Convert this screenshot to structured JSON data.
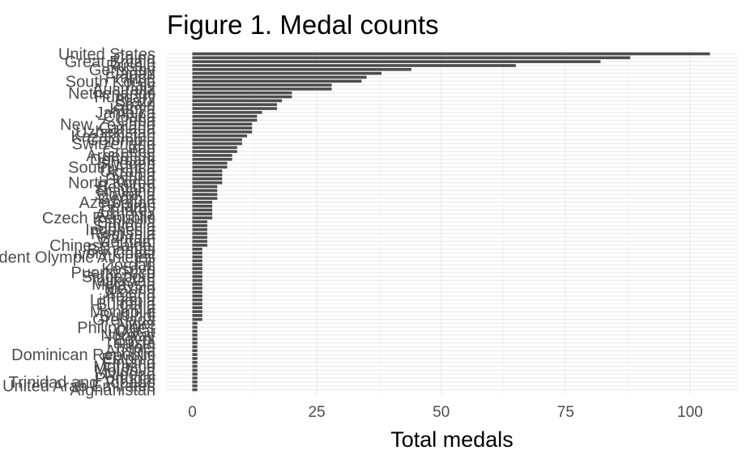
{
  "chart_data": {
    "type": "bar",
    "orientation": "horizontal",
    "title": "Figure 1. Medal counts",
    "xlabel": "Total medals",
    "ylabel": "",
    "xlim": [
      0,
      108
    ],
    "xticks": [
      0,
      25,
      50,
      75,
      100
    ],
    "grid": true,
    "bar_color": "#4d4d4d",
    "categories": [
      "United States",
      "China",
      "Great Britain",
      "Russia",
      "Germany",
      "Japan",
      "France",
      "South Korea",
      "Italy",
      "Australia",
      "Netherlands",
      "Hungary",
      "Brazil",
      "Spain",
      "Kenya",
      "Jamaica",
      "Croatia",
      "Cuba",
      "New Zealand",
      "Canada",
      "Uzbekistan",
      "Kazakhstan",
      "Colombia",
      "Switzerland",
      "Iran",
      "Greece",
      "Argentina",
      "Denmark",
      "Sweden",
      "South Africa",
      "Ukraine",
      "Serbia",
      "Poland",
      "North Korea",
      "Belgium",
      "Thailand",
      "Slovakia",
      "Georgia",
      "Azerbaijan",
      "Belarus",
      "Turkey",
      "Armenia",
      "Czech Republic",
      "Ethiopia",
      "Slovenia",
      "Indonesia",
      "Romania",
      "Bahrain",
      "Vietnam",
      "Chinese Taipei",
      "Bahamas",
      "Ivory Coast",
      "Independent Olympic Athletes",
      "Fiji",
      "Jordan",
      "Kosovo",
      "Puerto Rico",
      "Singapore",
      "Tajikistan",
      "Malaysia",
      "Mexico",
      "Algeria",
      "Ireland",
      "Lithuania",
      "Bulgaria",
      "India",
      "Mongolia",
      "Burundi",
      "Grenada",
      "Niger",
      "Philippines",
      "Qatar",
      "Norway",
      "Egypt",
      "Tunisia",
      "Israel",
      "Austria",
      "Dominican Republic",
      "Estonia",
      "Finland",
      "Morocco",
      "Moldova",
      "Nigeria",
      "Portugal",
      "Trinidad and Tobago",
      "United Arab Emirates",
      "Afghanistan"
    ],
    "series": [
      {
        "values": [
          104,
          88,
          82,
          65,
          44,
          38,
          35,
          34,
          28,
          28,
          20,
          20,
          18,
          17,
          17,
          14,
          13,
          13,
          12,
          12,
          12,
          11,
          10,
          10,
          9,
          9,
          8,
          8,
          7,
          7,
          6,
          6,
          6,
          6,
          5,
          5,
          5,
          5,
          4,
          4,
          4,
          4,
          4,
          3,
          3,
          3,
          3,
          3,
          3,
          3,
          2,
          2,
          2,
          2,
          2,
          2,
          2,
          2,
          2,
          2,
          2,
          2,
          2,
          2,
          2,
          2,
          2,
          2,
          2,
          1,
          1,
          1,
          1,
          1,
          1,
          1,
          1,
          1,
          1,
          1,
          1,
          1,
          1,
          1,
          1,
          1,
          1
        ]
      }
    ]
  }
}
